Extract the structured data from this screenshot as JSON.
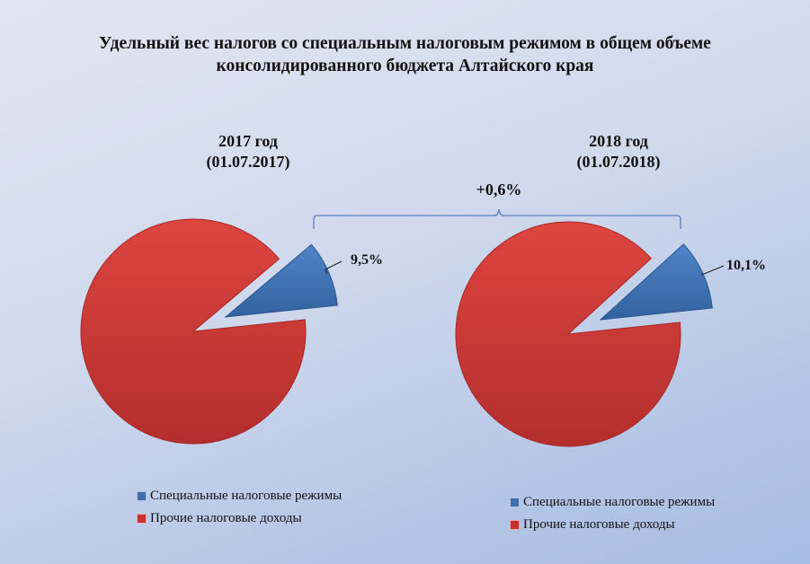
{
  "title": {
    "line1": "Удельный вес налогов со специальным налоговым режимом в общем объеме",
    "line2": "консолидированного бюджета Алтайского края"
  },
  "colors": {
    "special": "#3d6fb0",
    "special_dark": "#2b558e",
    "other": "#d03a36",
    "other_dark": "#a9282a",
    "bracket": "#5b7fbf"
  },
  "delta_label": "+0,6%",
  "charts": [
    {
      "year_label": "2017 год",
      "date_label": "(01.07.2017)",
      "special_label": "9,5%",
      "legend": [
        "Специальные налоговые режимы",
        "Прочие налоговые доходы"
      ]
    },
    {
      "year_label": "2018 год",
      "date_label": "(01.07.2018)",
      "special_label": "10,1%",
      "legend": [
        "Специальные налоговые режимы",
        "Прочие налоговые доходы"
      ]
    }
  ],
  "chart_data": [
    {
      "type": "pie",
      "title": "2017 год (01.07.2017)",
      "categories": [
        "Специальные налоговые режимы",
        "Прочие налоговые доходы"
      ],
      "values": [
        9.5,
        90.5
      ],
      "data_labels": [
        "9,5%",
        ""
      ],
      "legend_position": "bottom",
      "exploded": "Специальные налоговые режимы"
    },
    {
      "type": "pie",
      "title": "2018 год (01.07.2018)",
      "categories": [
        "Специальные налоговые режимы",
        "Прочие налоговые доходы"
      ],
      "values": [
        10.1,
        89.9
      ],
      "data_labels": [
        "10,1%",
        ""
      ],
      "legend_position": "bottom",
      "exploded": "Специальные налоговые режимы"
    }
  ],
  "annotation": {
    "text": "+0,6%",
    "type": "bracket",
    "spans": [
      "2017 год",
      "2018 год"
    ]
  }
}
